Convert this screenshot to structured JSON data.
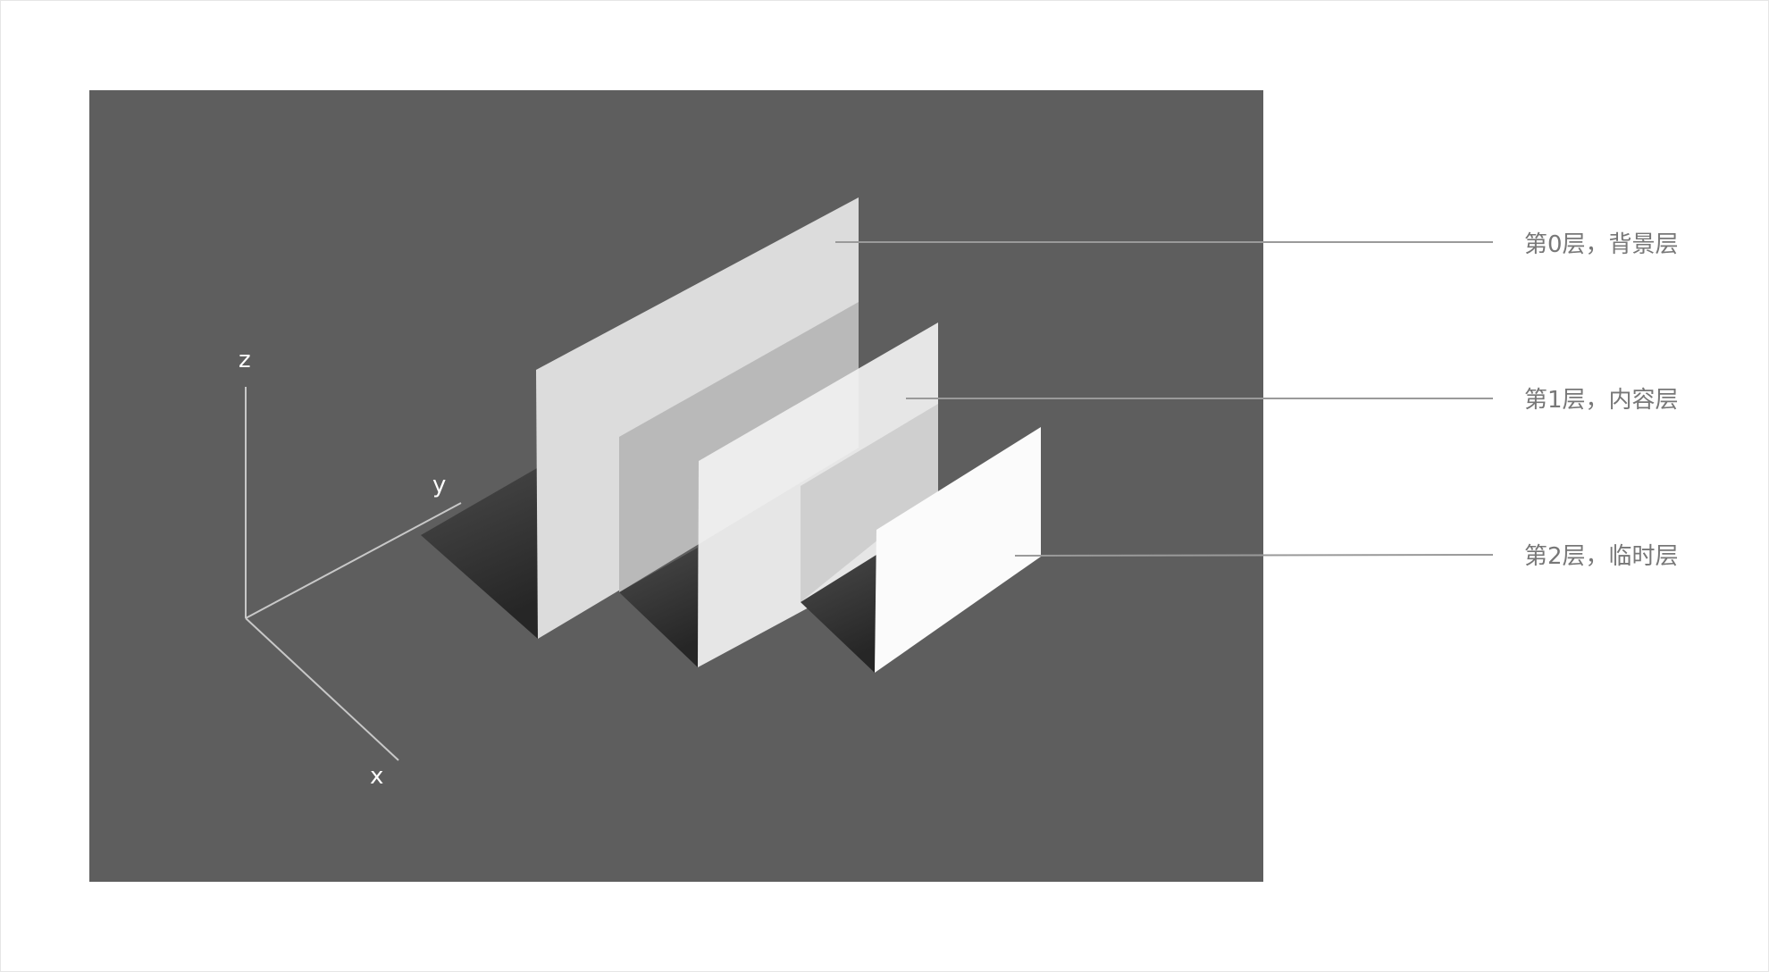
{
  "axes": {
    "z_label": "z",
    "y_label": "y",
    "x_label": "x"
  },
  "layers": [
    {
      "label": "第0层，背景层"
    },
    {
      "label": "第1层，内容层"
    },
    {
      "label": "第2层，临时层"
    }
  ],
  "colors": {
    "panel_background": "#5e5e5e",
    "axis_line": "#c8c8c8",
    "leader_line": "#9a9a9a",
    "label_text": "#777777"
  }
}
